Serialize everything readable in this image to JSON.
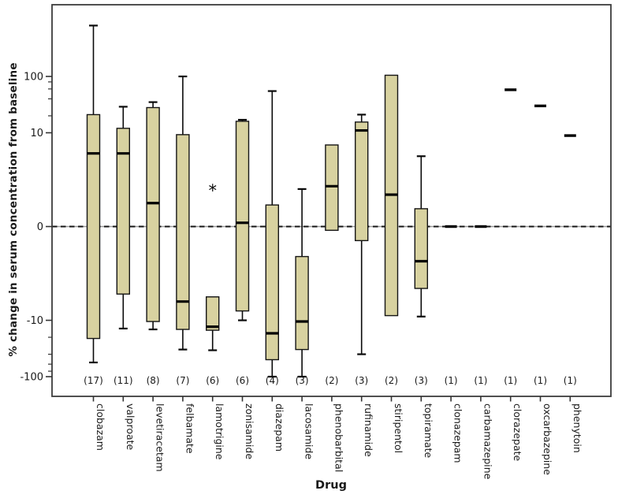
{
  "chart_data": {
    "type": "boxplot",
    "title": "",
    "xlabel": "Drug",
    "ylabel": "% change in serum concentration from baseline",
    "box_fill_color": "#d8d2a0",
    "box_edge_color": "#141414",
    "y_axis": {
      "scale": "symlog (linear between -10 and 10, log per decade beyond)",
      "major_ticks": [
        100,
        10,
        0,
        -10,
        -100
      ],
      "major_tick_labels": [
        "100",
        "10",
        "0",
        "-10",
        "-100"
      ],
      "minor_ticks": [
        80,
        60,
        40,
        20,
        -20,
        -40,
        -60,
        -80
      ],
      "ylim": [
        -120,
        900
      ],
      "zero_reference_line": "dashed"
    },
    "drugs": [
      {
        "name": "clobazam",
        "n": 17,
        "count_label": "(17)",
        "whisker_low": -56,
        "q1": -21,
        "median": 7.8,
        "q3": 21,
        "whisker_high": 800
      },
      {
        "name": "valproate",
        "n": 11,
        "count_label": "(11)",
        "whisker_low": -14,
        "q1": -7.2,
        "median": 7.8,
        "q3": 12,
        "whisker_high": 29
      },
      {
        "name": "levetiracetam",
        "n": 8,
        "count_label": "(8)",
        "whisker_low": -14.5,
        "q1": -10.5,
        "median": 2.5,
        "q3": 28,
        "whisker_high": 35
      },
      {
        "name": "felbamate",
        "n": 7,
        "count_label": "(7)",
        "whisker_low": -33,
        "q1": -14.5,
        "median": -8,
        "q3": 9.8,
        "whisker_high": 100
      },
      {
        "name": "lamotrigine",
        "n": 6,
        "count_label": "(6)",
        "whisker_low": -34,
        "q1": -15,
        "median": -13,
        "q3": -7.5,
        "whisker_high": null
      },
      {
        "name": "zonisamide",
        "n": 6,
        "count_label": "(6)",
        "whisker_low": -10,
        "q1": -9,
        "median": 0.4,
        "q3": 16,
        "whisker_high": 17
      },
      {
        "name": "diazepam",
        "n": 4,
        "count_label": "(4)",
        "whisker_low": -100,
        "q1": -50,
        "median": -17,
        "q3": 2.3,
        "whisker_high": 55
      },
      {
        "name": "lacosamide",
        "n": 3,
        "count_label": "(3)",
        "whisker_low": -100,
        "q1": -33,
        "median": -10.5,
        "q3": -3.2,
        "whisker_high": 4
      },
      {
        "name": "phenobarbital",
        "n": 2,
        "count_label": "(2)",
        "whisker_low": null,
        "q1": -0.4,
        "median": 4.3,
        "q3": 8.7,
        "whisker_high": null
      },
      {
        "name": "rufinamide",
        "n": 3,
        "count_label": "(3)",
        "whisker_low": -40,
        "q1": -1.5,
        "median": 11,
        "q3": 15.5,
        "whisker_high": 21
      },
      {
        "name": "stiripentol",
        "n": 2,
        "count_label": "(2)",
        "whisker_low": null,
        "q1": -9.5,
        "median": 3.4,
        "q3": 105,
        "whisker_high": null
      },
      {
        "name": "topiramate",
        "n": 3,
        "count_label": "(3)",
        "whisker_low": -9.6,
        "q1": -6.6,
        "median": -3.7,
        "q3": 1.9,
        "whisker_high": 7.5
      },
      {
        "name": "clonazepam",
        "n": 1,
        "count_label": "(1)",
        "value": 0
      },
      {
        "name": "carbamazepine",
        "n": 1,
        "count_label": "(1)",
        "value": 0
      },
      {
        "name": "clorazepate",
        "n": 1,
        "count_label": "(1)",
        "value": 58
      },
      {
        "name": "oxcarbazepine",
        "n": 1,
        "count_label": "(1)",
        "value": 30
      },
      {
        "name": "phenytoin",
        "n": 1,
        "count_label": "(1)",
        "value": 9.7
      }
    ],
    "outliers": [
      {
        "drug": "lamotrigine",
        "value": 4,
        "marker": "*"
      }
    ]
  }
}
